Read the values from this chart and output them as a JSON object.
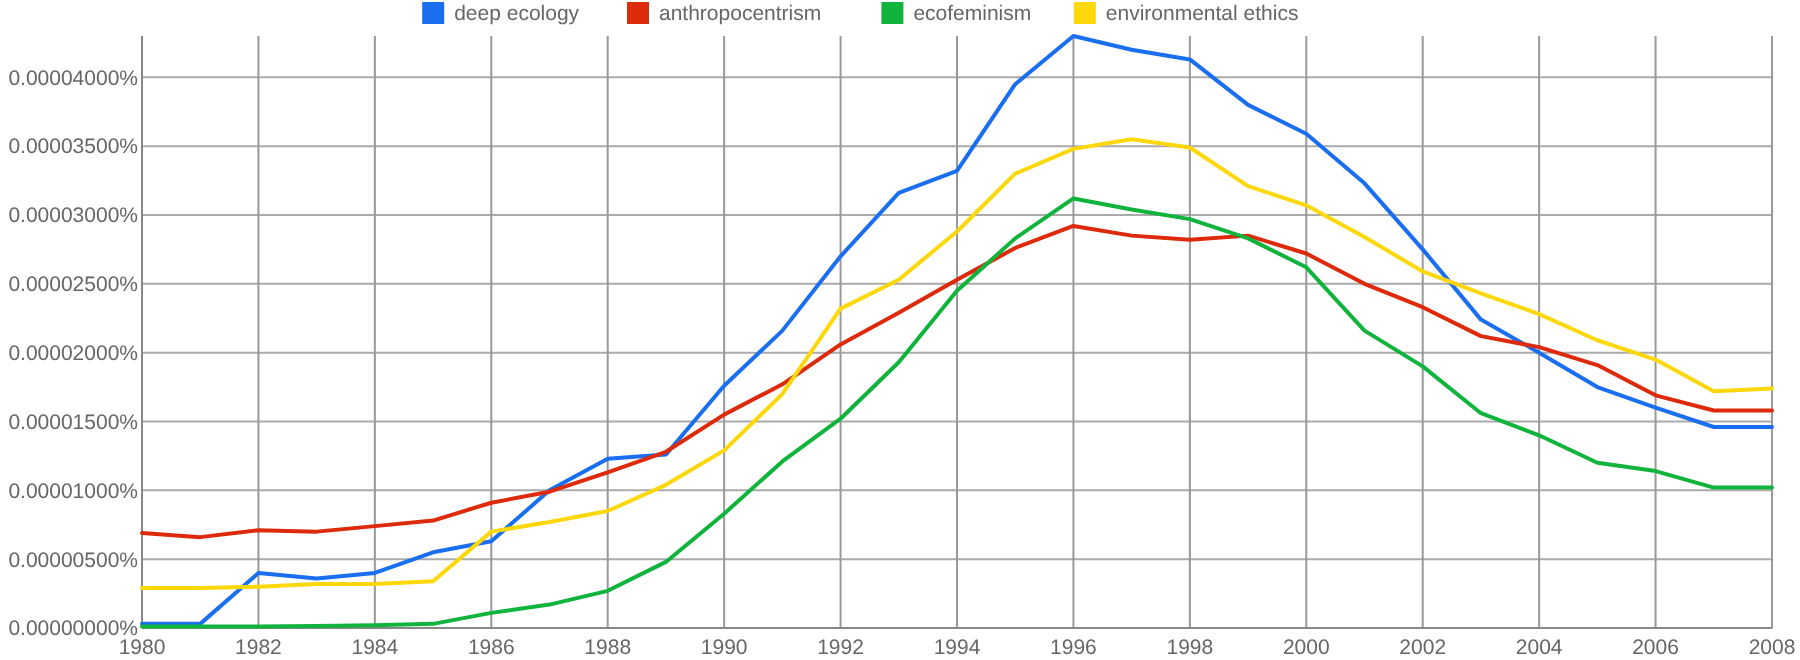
{
  "chart_data": {
    "type": "line",
    "x": [
      1980,
      1981,
      1982,
      1983,
      1984,
      1985,
      1986,
      1987,
      1988,
      1989,
      1990,
      1991,
      1992,
      1993,
      1994,
      1995,
      1996,
      1997,
      1998,
      1999,
      2000,
      2001,
      2002,
      2003,
      2004,
      2005,
      2006,
      2007,
      2008
    ],
    "series": [
      {
        "name": "deep ecology",
        "color": "#1a6ef0",
        "values": [
          3e-07,
          3e-07,
          4e-06,
          3.6e-06,
          4e-06,
          5.5e-06,
          6.3e-06,
          1e-05,
          1.23e-05,
          1.26e-05,
          1.76e-05,
          2.16e-05,
          2.7e-05,
          3.16e-05,
          3.32e-05,
          3.95e-05,
          4.3e-05,
          4.2e-05,
          4.13e-05,
          3.8e-05,
          3.59e-05,
          3.23e-05,
          2.75e-05,
          2.24e-05,
          2e-05,
          1.75e-05,
          1.6e-05,
          1.46e-05,
          1.46e-05
        ]
      },
      {
        "name": "anthropocentrism",
        "color": "#dc2a0a",
        "values": [
          6.9e-06,
          6.6e-06,
          7.1e-06,
          7e-06,
          7.4e-06,
          7.8e-06,
          9.1e-06,
          9.9e-06,
          1.13e-05,
          1.28e-05,
          1.55e-05,
          1.77e-05,
          2.06e-05,
          2.29e-05,
          2.53e-05,
          2.76e-05,
          2.92e-05,
          2.85e-05,
          2.82e-05,
          2.85e-05,
          2.72e-05,
          2.5e-05,
          2.33e-05,
          2.12e-05,
          2.04e-05,
          1.91e-05,
          1.69e-05,
          1.58e-05,
          1.58e-05
        ]
      },
      {
        "name": "ecofeminism",
        "color": "#10b43c",
        "values": [
          1e-07,
          1e-07,
          1e-07,
          1.5e-07,
          2e-07,
          3e-07,
          1.1e-06,
          1.7e-06,
          2.7e-06,
          4.8e-06,
          8.3e-06,
          1.21e-05,
          1.52e-05,
          1.93e-05,
          2.45e-05,
          2.83e-05,
          3.12e-05,
          3.04e-05,
          2.97e-05,
          2.83e-05,
          2.62e-05,
          2.16e-05,
          1.9e-05,
          1.56e-05,
          1.4e-05,
          1.2e-05,
          1.14e-05,
          1.02e-05,
          1.02e-05
        ]
      },
      {
        "name": "environmental ethics",
        "color": "#fcd80a",
        "values": [
          2.9e-06,
          2.9e-06,
          3e-06,
          3.2e-06,
          3.2e-06,
          3.4e-06,
          7e-06,
          7.7e-06,
          8.5e-06,
          1.04e-05,
          1.29e-05,
          1.7e-05,
          2.32e-05,
          2.53e-05,
          2.88e-05,
          3.3e-05,
          3.48e-05,
          3.55e-05,
          3.49e-05,
          3.21e-05,
          3.07e-05,
          2.84e-05,
          2.59e-05,
          2.43e-05,
          2.28e-05,
          2.09e-05,
          1.95e-05,
          1.72e-05,
          1.74e-05
        ]
      }
    ],
    "xlim": [
      1980,
      2008
    ],
    "xticks": [
      1980,
      1982,
      1984,
      1986,
      1988,
      1990,
      1992,
      1994,
      1996,
      1998,
      2000,
      2002,
      2004,
      2006,
      2008
    ],
    "ylim": [
      0,
      4.3e-05
    ],
    "yticks": [
      {
        "value": 0,
        "label": "0.00000000%"
      },
      {
        "value": 5e-06,
        "label": "0.00000500%"
      },
      {
        "value": 1e-05,
        "label": "0.00001000%"
      },
      {
        "value": 1.5e-05,
        "label": "0.00001500%"
      },
      {
        "value": 2e-05,
        "label": "0.00002000%"
      },
      {
        "value": 2.5e-05,
        "label": "0.00002500%"
      },
      {
        "value": 3e-05,
        "label": "0.00003000%"
      },
      {
        "value": 3.5e-05,
        "label": "0.00003500%"
      },
      {
        "value": 4e-05,
        "label": "0.00004000%"
      }
    ],
    "grid": true,
    "legend": "top",
    "line_style": "solid",
    "marker": "none"
  }
}
